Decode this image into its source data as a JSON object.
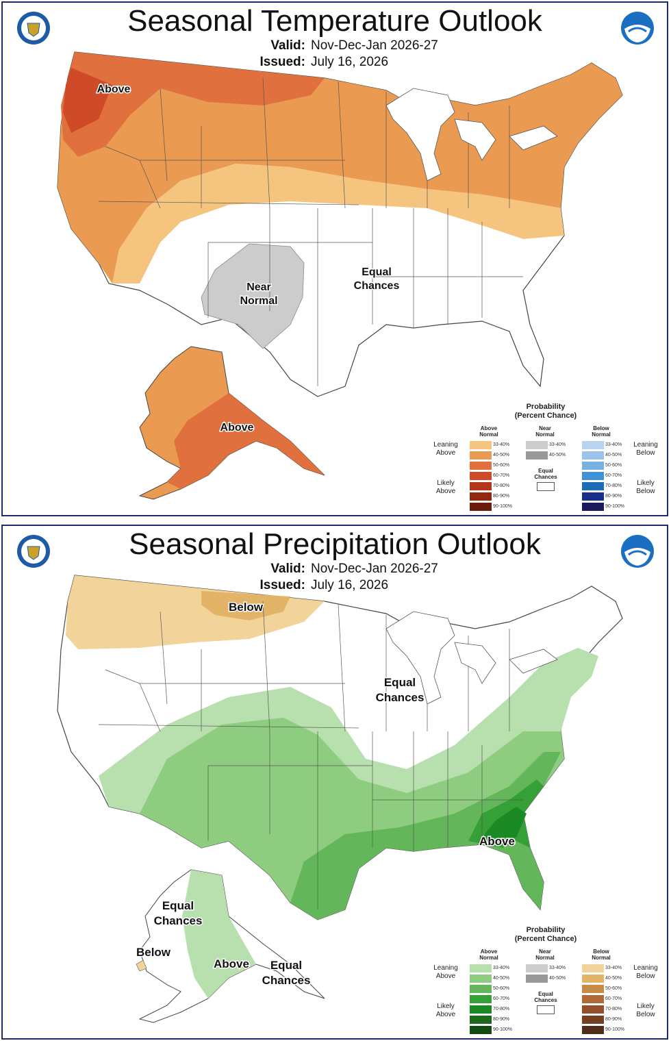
{
  "temperature": {
    "title": "Seasonal Temperature Outlook",
    "valid_label": "Valid:",
    "valid_value": "Nov-Dec-Jan 2026-27",
    "issued_label": "Issued:",
    "issued_value": "July 16, 2026",
    "labels": {
      "above_conus": "Above",
      "near_normal_1": "Near",
      "near_normal_2": "Normal",
      "equal_chances_1": "Equal",
      "equal_chances_2": "Chances",
      "above_alaska": "Above"
    },
    "legend": {
      "title_1": "Probability",
      "title_2": "(Percent Chance)",
      "col_above_1": "Above",
      "col_above_2": "Normal",
      "col_near_1": "Near",
      "col_near_2": "Normal",
      "col_below_1": "Below",
      "col_below_2": "Normal",
      "leaning_above_1": "Leaning",
      "leaning_above_2": "Above",
      "likely_above_1": "Likely",
      "likely_above_2": "Above",
      "leaning_below_1": "Leaning",
      "leaning_below_2": "Below",
      "likely_below_1": "Likely",
      "likely_below_2": "Below",
      "equal_1": "Equal",
      "equal_2": "Chances",
      "ranges": [
        "33-40%",
        "40-50%",
        "50-60%",
        "60-70%",
        "70-80%",
        "80-90%",
        "90-100%"
      ],
      "near_ranges": [
        "33-40%",
        "40-50%"
      ],
      "above_colors": [
        "#f5c57f",
        "#eb9a52",
        "#e0703d",
        "#cf4a26",
        "#b4341c",
        "#92280f",
        "#6b1d0b"
      ],
      "near_colors": [
        "#cccccc",
        "#999999"
      ],
      "below_colors": [
        "#b9d3ee",
        "#9cc3ea",
        "#78b0e3",
        "#3f92d6",
        "#1c6cb6",
        "#1a2f8a",
        "#1b1a5a"
      ]
    }
  },
  "precipitation": {
    "title": "Seasonal Precipitation Outlook",
    "valid_label": "Valid:",
    "valid_value": "Nov-Dec-Jan 2026-27",
    "issued_label": "Issued:",
    "issued_value": "July 16, 2026",
    "labels": {
      "below_conus": "Below",
      "equal_chances_1": "Equal",
      "equal_chances_2": "Chances",
      "above_conus": "Above",
      "ak_equal_1": "Equal",
      "ak_equal_2": "Chances",
      "ak_below": "Below",
      "ak_above": "Above",
      "ak_equal_se_1": "Equal",
      "ak_equal_se_2": "Chances"
    },
    "legend": {
      "title_1": "Probability",
      "title_2": "(Percent Chance)",
      "col_above_1": "Above",
      "col_above_2": "Normal",
      "col_near_1": "Near",
      "col_near_2": "Normal",
      "col_below_1": "Below",
      "col_below_2": "Normal",
      "leaning_above_1": "Leaning",
      "leaning_above_2": "Above",
      "likely_above_1": "Likely",
      "likely_above_2": "Above",
      "leaning_below_1": "Leaning",
      "leaning_below_2": "Below",
      "likely_below_1": "Likely",
      "likely_below_2": "Below",
      "equal_1": "Equal",
      "equal_2": "Chances",
      "ranges": [
        "33-40%",
        "40-50%",
        "50-60%",
        "60-70%",
        "70-80%",
        "80-90%",
        "90-100%"
      ],
      "near_ranges": [
        "33-40%",
        "40-50%"
      ],
      "above_colors": [
        "#b8dfae",
        "#8ecc7f",
        "#63b75a",
        "#34a036",
        "#1b8a24",
        "#1a6b1b",
        "#134a12"
      ],
      "near_colors": [
        "#cccccc",
        "#999999"
      ],
      "below_colors": [
        "#f2d49a",
        "#e3b467",
        "#c98a45",
        "#b06a35",
        "#93502c",
        "#744020",
        "#4f2e1a"
      ]
    }
  },
  "colors": {
    "frame": "#1f2a6b",
    "doc_seal": "#1e5aa8",
    "noaa_blue": "#1b6fc2"
  }
}
